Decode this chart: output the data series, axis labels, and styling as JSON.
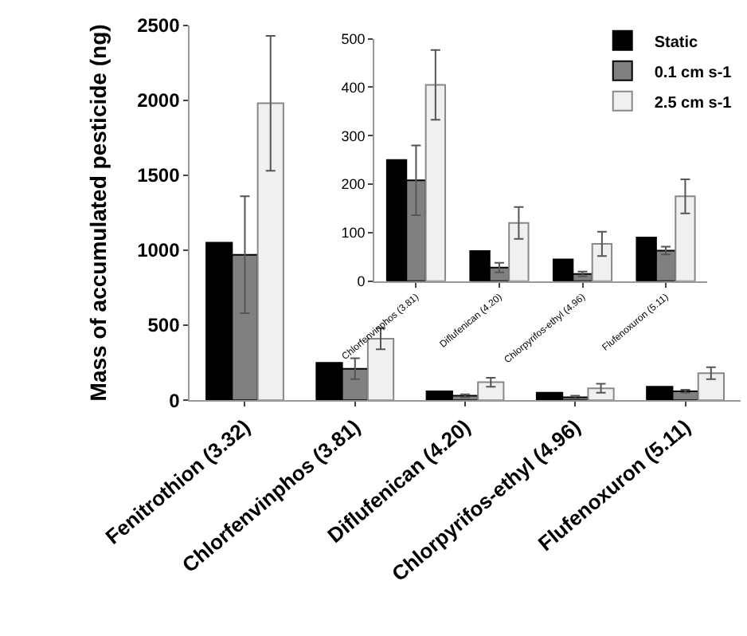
{
  "chart_data": [
    {
      "type": "bar",
      "ylabel": "Mass of accumulated pesticide (ng)",
      "categories": [
        "Fenitrothion (3.32)",
        "Chlorfenvinphos (3.81)",
        "Diflufenican (4.20)",
        "Chlorpyrifos-ethyl (4.96)",
        "Flufenoxuron (5.11)"
      ],
      "ylim": [
        0,
        2500
      ],
      "yticks": [
        0,
        500,
        1000,
        1500,
        2000,
        2500
      ],
      "legend": false,
      "series": [
        {
          "color": "#000000",
          "values": [
            1050,
            250,
            60,
            50,
            90
          ]
        },
        {
          "color": "#808080",
          "values": [
            970,
            210,
            30,
            20,
            60
          ],
          "errors": [
            390,
            70,
            10,
            10,
            10
          ]
        },
        {
          "color": "#f0f0f0",
          "values": [
            1980,
            410,
            120,
            80,
            180
          ],
          "errors": [
            450,
            70,
            30,
            30,
            40
          ]
        }
      ]
    },
    {
      "type": "bar",
      "categories": [
        "Chlorfenvinphos (3.81)",
        "Diflufenican (4.20)",
        "Chlorpyrifos-ethyl (4.96)",
        "Flufenoxuron (5.11)"
      ],
      "ylim": [
        0,
        500
      ],
      "yticks": [
        0,
        100,
        200,
        300,
        400,
        500
      ],
      "legend": "top right",
      "series": [
        {
          "name": "Static",
          "color": "#000000",
          "values": [
            250,
            62,
            45,
            90
          ]
        },
        {
          "name": "0.1 cm s-1",
          "color": "#808080",
          "values": [
            208,
            28,
            15,
            63
          ],
          "errors": [
            72,
            10,
            5,
            8
          ]
        },
        {
          "name": "2.5 cm s-1",
          "color": "#f0f0f0",
          "values": [
            405,
            120,
            77,
            175
          ],
          "errors": [
            72,
            33,
            25,
            35
          ]
        }
      ]
    }
  ]
}
